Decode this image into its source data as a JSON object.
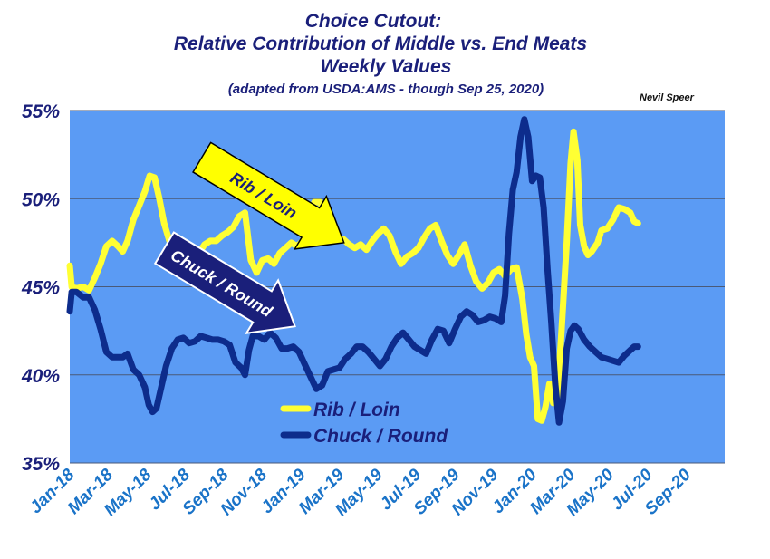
{
  "chart_data": {
    "type": "line",
    "title": "Choice Cutout:",
    "title_lines": [
      "Choice Cutout:",
      "Relative Contribution of Middle vs. End Meats",
      "Weekly Values",
      "(adapted from USDA:AMS - though Sep 25, 2020)"
    ],
    "credit": "Nevil Speer",
    "ylim": [
      35,
      55
    ],
    "yticks": [
      "55%",
      "50%",
      "45%",
      "40%",
      "35%"
    ],
    "xlim": [
      0,
      34
    ],
    "xticks": [
      "Jan-18",
      "Mar-18",
      "May-18",
      "Jul-18",
      "Sep-18",
      "Nov-18",
      "Jan-19",
      "Mar-19",
      "May-19",
      "Jul-19",
      "Sep-19",
      "Nov-19",
      "Jan-20",
      "Mar-20",
      "May-20",
      "Jul-20",
      "Sep-20"
    ],
    "grid": true,
    "legend_position": "bottom-center",
    "colors": {
      "plot_bg": "#5b9bf4",
      "rib_loin": "#ffff33",
      "chuck_round": "#0d2c8c",
      "text": "#1a1f7a",
      "tick": "#1a73c8"
    },
    "annotations": [
      {
        "text": "Rib / Loin",
        "style": "yellow-arrow",
        "x": 5.8,
        "y": 47.5
      },
      {
        "text": "Chuck / Round",
        "style": "navy-arrow",
        "x": 5.2,
        "y": 41.8
      }
    ],
    "series": [
      {
        "name": "Rib / Loin",
        "color": "#ffff33",
        "points": [
          [
            0,
            46.2
          ],
          [
            0.1,
            45.0
          ],
          [
            0.35,
            44.9
          ],
          [
            0.7,
            45.0
          ],
          [
            1.0,
            44.8
          ],
          [
            1.3,
            45.5
          ],
          [
            1.6,
            46.3
          ],
          [
            1.9,
            47.3
          ],
          [
            2.2,
            47.6
          ],
          [
            2.5,
            47.3
          ],
          [
            2.75,
            47.0
          ],
          [
            3.0,
            47.6
          ],
          [
            3.3,
            48.8
          ],
          [
            3.6,
            49.6
          ],
          [
            3.9,
            50.4
          ],
          [
            4.15,
            51.3
          ],
          [
            4.4,
            51.2
          ],
          [
            4.65,
            50.0
          ],
          [
            4.9,
            48.6
          ],
          [
            5.2,
            47.5
          ],
          [
            5.5,
            46.7
          ],
          [
            5.8,
            46.4
          ],
          [
            6.1,
            46.4
          ],
          [
            6.4,
            46.7
          ],
          [
            6.7,
            46.9
          ],
          [
            7.0,
            47.4
          ],
          [
            7.3,
            47.6
          ],
          [
            7.6,
            47.6
          ],
          [
            7.9,
            47.9
          ],
          [
            8.2,
            48.1
          ],
          [
            8.5,
            48.4
          ],
          [
            8.8,
            49.0
          ],
          [
            9.1,
            49.2
          ],
          [
            9.4,
            46.5
          ],
          [
            9.7,
            45.8
          ],
          [
            10.0,
            46.5
          ],
          [
            10.3,
            46.6
          ],
          [
            10.6,
            46.3
          ],
          [
            10.9,
            46.9
          ],
          [
            11.2,
            47.2
          ],
          [
            11.5,
            47.5
          ],
          [
            11.8,
            47.3
          ],
          [
            12.1,
            47.6
          ],
          [
            12.4,
            48.9
          ],
          [
            12.7,
            49.8
          ],
          [
            13.0,
            49.8
          ],
          [
            13.3,
            49.0
          ],
          [
            13.6,
            47.9
          ],
          [
            13.9,
            47.7
          ],
          [
            14.2,
            47.7
          ],
          [
            14.5,
            47.4
          ],
          [
            14.8,
            47.2
          ],
          [
            15.1,
            47.4
          ],
          [
            15.4,
            47.1
          ],
          [
            15.7,
            47.6
          ],
          [
            16.0,
            48.0
          ],
          [
            16.3,
            48.3
          ],
          [
            16.6,
            47.9
          ],
          [
            16.9,
            47.0
          ],
          [
            17.2,
            46.3
          ],
          [
            17.5,
            46.7
          ],
          [
            17.8,
            46.9
          ],
          [
            18.1,
            47.2
          ],
          [
            18.4,
            47.8
          ],
          [
            18.7,
            48.3
          ],
          [
            19.0,
            48.5
          ],
          [
            19.3,
            47.6
          ],
          [
            19.6,
            46.8
          ],
          [
            19.9,
            46.3
          ],
          [
            20.2,
            46.8
          ],
          [
            20.5,
            47.4
          ],
          [
            20.8,
            46.2
          ],
          [
            21.1,
            45.3
          ],
          [
            21.4,
            44.9
          ],
          [
            21.7,
            45.2
          ],
          [
            22.0,
            45.8
          ],
          [
            22.3,
            46.0
          ],
          [
            22.6,
            45.6
          ],
          [
            22.9,
            46.0
          ],
          [
            23.2,
            46.1
          ],
          [
            23.5,
            44.3
          ],
          [
            23.7,
            42.3
          ],
          [
            23.9,
            41.0
          ],
          [
            24.1,
            40.5
          ],
          [
            24.3,
            37.5
          ],
          [
            24.5,
            37.4
          ],
          [
            24.7,
            38.2
          ],
          [
            24.9,
            39.5
          ],
          [
            25.1,
            38.4
          ],
          [
            25.3,
            38.5
          ],
          [
            25.5,
            42.0
          ],
          [
            25.8,
            47.5
          ],
          [
            26.0,
            52.0
          ],
          [
            26.15,
            53.8
          ],
          [
            26.35,
            52.2
          ],
          [
            26.5,
            48.5
          ],
          [
            26.7,
            47.3
          ],
          [
            26.9,
            46.8
          ],
          [
            27.1,
            47.0
          ],
          [
            27.4,
            47.5
          ],
          [
            27.6,
            48.2
          ],
          [
            27.9,
            48.3
          ],
          [
            28.2,
            48.8
          ],
          [
            28.5,
            49.5
          ],
          [
            28.8,
            49.4
          ],
          [
            29.1,
            49.2
          ],
          [
            29.3,
            48.7
          ],
          [
            29.5,
            48.6
          ]
        ]
      },
      {
        "name": "Chuck / Round",
        "color": "#0d2c8c",
        "points": [
          [
            0,
            43.6
          ],
          [
            0.1,
            44.7
          ],
          [
            0.35,
            44.7
          ],
          [
            0.7,
            44.4
          ],
          [
            1.0,
            44.4
          ],
          [
            1.3,
            43.7
          ],
          [
            1.6,
            42.6
          ],
          [
            1.9,
            41.3
          ],
          [
            2.2,
            41.0
          ],
          [
            2.5,
            41.0
          ],
          [
            2.75,
            41.0
          ],
          [
            3.0,
            41.2
          ],
          [
            3.3,
            40.3
          ],
          [
            3.6,
            40.0
          ],
          [
            3.9,
            39.3
          ],
          [
            4.1,
            38.3
          ],
          [
            4.3,
            37.9
          ],
          [
            4.5,
            38.1
          ],
          [
            4.75,
            39.3
          ],
          [
            5.0,
            40.5
          ],
          [
            5.3,
            41.5
          ],
          [
            5.6,
            42.0
          ],
          [
            5.9,
            42.1
          ],
          [
            6.2,
            41.8
          ],
          [
            6.5,
            41.9
          ],
          [
            6.8,
            42.2
          ],
          [
            7.1,
            42.1
          ],
          [
            7.4,
            42.0
          ],
          [
            7.7,
            42.0
          ],
          [
            8.0,
            41.9
          ],
          [
            8.3,
            41.7
          ],
          [
            8.6,
            40.7
          ],
          [
            8.9,
            40.4
          ],
          [
            9.1,
            40.0
          ],
          [
            9.3,
            41.4
          ],
          [
            9.5,
            42.2
          ],
          [
            9.8,
            42.2
          ],
          [
            10.1,
            42.0
          ],
          [
            10.4,
            42.4
          ],
          [
            10.7,
            42.1
          ],
          [
            11.0,
            41.5
          ],
          [
            11.3,
            41.5
          ],
          [
            11.6,
            41.6
          ],
          [
            11.9,
            41.3
          ],
          [
            12.2,
            40.6
          ],
          [
            12.5,
            39.9
          ],
          [
            12.8,
            39.2
          ],
          [
            13.1,
            39.4
          ],
          [
            13.4,
            40.2
          ],
          [
            13.7,
            40.3
          ],
          [
            14.0,
            40.4
          ],
          [
            14.3,
            40.9
          ],
          [
            14.6,
            41.2
          ],
          [
            14.9,
            41.6
          ],
          [
            15.2,
            41.6
          ],
          [
            15.5,
            41.3
          ],
          [
            15.8,
            40.9
          ],
          [
            16.1,
            40.5
          ],
          [
            16.4,
            40.9
          ],
          [
            16.7,
            41.6
          ],
          [
            17.0,
            42.1
          ],
          [
            17.3,
            42.4
          ],
          [
            17.6,
            42.0
          ],
          [
            17.9,
            41.6
          ],
          [
            18.2,
            41.4
          ],
          [
            18.5,
            41.2
          ],
          [
            18.8,
            42.0
          ],
          [
            19.1,
            42.6
          ],
          [
            19.4,
            42.5
          ],
          [
            19.7,
            41.8
          ],
          [
            20.0,
            42.6
          ],
          [
            20.3,
            43.3
          ],
          [
            20.6,
            43.6
          ],
          [
            20.9,
            43.4
          ],
          [
            21.2,
            43.0
          ],
          [
            21.5,
            43.1
          ],
          [
            21.8,
            43.3
          ],
          [
            22.1,
            43.2
          ],
          [
            22.4,
            43.0
          ],
          [
            22.6,
            44.5
          ],
          [
            22.8,
            48.0
          ],
          [
            23.0,
            50.5
          ],
          [
            23.2,
            51.5
          ],
          [
            23.4,
            53.5
          ],
          [
            23.6,
            54.5
          ],
          [
            23.8,
            53.5
          ],
          [
            24.0,
            51.0
          ],
          [
            24.2,
            51.3
          ],
          [
            24.4,
            51.2
          ],
          [
            24.6,
            49.5
          ],
          [
            24.8,
            46.0
          ],
          [
            25.0,
            43.0
          ],
          [
            25.2,
            39.5
          ],
          [
            25.4,
            37.3
          ],
          [
            25.6,
            38.5
          ],
          [
            25.8,
            41.5
          ],
          [
            26.0,
            42.5
          ],
          [
            26.2,
            42.8
          ],
          [
            26.4,
            42.6
          ],
          [
            26.7,
            42.0
          ],
          [
            27.0,
            41.6
          ],
          [
            27.3,
            41.3
          ],
          [
            27.6,
            41.0
          ],
          [
            27.9,
            40.9
          ],
          [
            28.2,
            40.8
          ],
          [
            28.5,
            40.7
          ],
          [
            28.8,
            41.1
          ],
          [
            29.1,
            41.4
          ],
          [
            29.3,
            41.6
          ],
          [
            29.5,
            41.6
          ]
        ]
      }
    ]
  }
}
